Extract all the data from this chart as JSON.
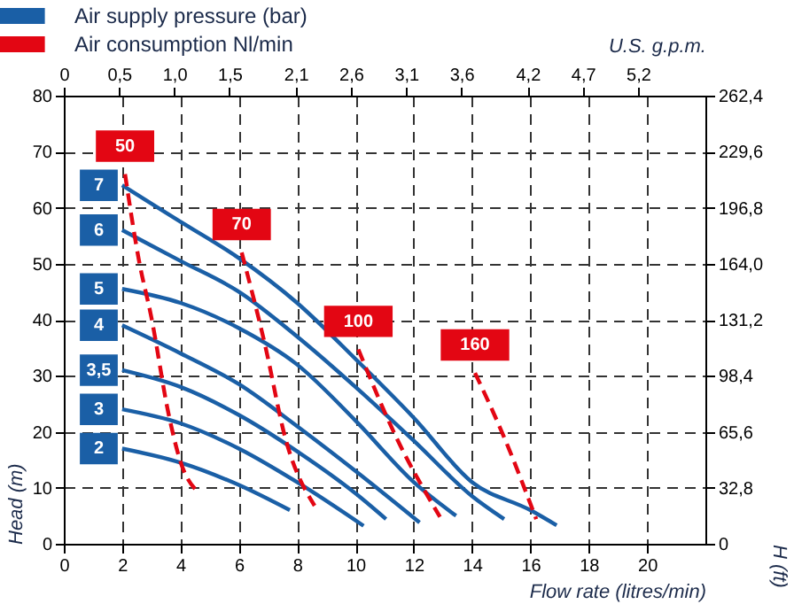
{
  "chart_data": {
    "type": "line",
    "xlabel": "Flow rate (litres/min)",
    "ylabel": "Head (m)",
    "y2label": "H (ft)",
    "x2label": "U.S. g.p.m.",
    "annotations": [
      "Air supply pressure (bar)",
      "Air consumption Nl/min"
    ],
    "xlim": [
      0,
      22
    ],
    "xticks": [
      0,
      2,
      4,
      6,
      8,
      10,
      12,
      14,
      16,
      18,
      20
    ],
    "ylim": [
      0,
      80
    ],
    "yticks": [
      0,
      10,
      20,
      30,
      40,
      50,
      60,
      70,
      80
    ],
    "x2lim": [
      0,
      5.81
    ],
    "x2ticks": [
      {
        "value": 0,
        "label": "0"
      },
      {
        "value": 0.5,
        "label": "0,5"
      },
      {
        "value": 1.0,
        "label": "1,0"
      },
      {
        "value": 1.5,
        "label": "1,5"
      },
      {
        "value": 2.1,
        "label": "2,1"
      },
      {
        "value": 2.6,
        "label": "2,6"
      },
      {
        "value": 3.1,
        "label": "3,1"
      },
      {
        "value": 3.6,
        "label": "3,6"
      },
      {
        "value": 4.2,
        "label": "4,2"
      },
      {
        "value": 4.7,
        "label": "4,7"
      },
      {
        "value": 5.2,
        "label": "5,2"
      }
    ],
    "y2lim": [
      0,
      262.4
    ],
    "y2ticks": [
      0,
      {
        "value": 32.8,
        "label": "32,8"
      },
      {
        "value": 65.6,
        "label": "65,6"
      },
      {
        "value": 98.4,
        "label": "98,4"
      },
      {
        "value": 131.2,
        "label": "131,2"
      },
      {
        "value": 164.0,
        "label": "164,0"
      },
      {
        "value": 196.8,
        "label": "196,8"
      },
      {
        "value": 229.6,
        "label": "229,6"
      },
      {
        "value": 262.4,
        "label": "262,4"
      }
    ],
    "grid": true,
    "legend": "top left",
    "marker": "none",
    "series": [
      {
        "name": "7",
        "color": "#1a5fa6",
        "line_style": "solid",
        "x": [
          2,
          4,
          6,
          8,
          10,
          12,
          14,
          16,
          16.9
        ],
        "values": [
          64,
          57.5,
          51,
          43,
          33,
          22.5,
          11,
          6,
          3.3
        ]
      },
      {
        "name": "6",
        "color": "#1a5fa6",
        "line_style": "solid",
        "x": [
          2,
          4,
          6,
          8,
          10,
          12,
          14,
          15.1
        ],
        "values": [
          56,
          50.5,
          45,
          37,
          28,
          18.4,
          8.5,
          4.4
        ]
      },
      {
        "name": "5",
        "color": "#1a5fa6",
        "line_style": "solid",
        "x": [
          2,
          4,
          6,
          8,
          10,
          12,
          13.45
        ],
        "values": [
          45.5,
          43,
          38.5,
          32,
          22,
          11,
          5
        ]
      },
      {
        "name": "4",
        "color": "#1a5fa6",
        "line_style": "solid",
        "x": [
          2,
          4,
          6,
          8,
          10,
          12.2
        ],
        "values": [
          39,
          34,
          28.5,
          21,
          13,
          3.8
        ]
      },
      {
        "name": "3,5",
        "color": "#1a5fa6",
        "line_style": "solid",
        "x": [
          2,
          4,
          6,
          8,
          10,
          11.05
        ],
        "values": [
          31,
          28,
          23,
          16.5,
          9,
          4.4
        ]
      },
      {
        "name": "3",
        "color": "#1a5fa6",
        "line_style": "solid",
        "x": [
          2,
          4,
          6,
          8,
          10.28
        ],
        "values": [
          24,
          21.5,
          17,
          11,
          3.2
        ]
      },
      {
        "name": "2",
        "color": "#1a5fa6",
        "line_style": "solid",
        "x": [
          2,
          4,
          6,
          7.75
        ],
        "values": [
          17,
          14.5,
          10.5,
          6
        ]
      },
      {
        "name": "50",
        "color": "#e30613",
        "line_style": "dashed",
        "x": [
          2.1,
          2.58,
          3.0,
          3.6,
          3.98,
          4.65
        ],
        "values": [
          66,
          50.5,
          40.5,
          23,
          15,
          9
        ]
      },
      {
        "name": "70",
        "color": "#e30613",
        "line_style": "dashed",
        "x": [
          6.1,
          6.9,
          7.6,
          8.6
        ],
        "values": [
          52,
          35.5,
          18.8,
          6.8
        ]
      },
      {
        "name": "100",
        "color": "#e30613",
        "line_style": "dashed",
        "x": [
          10.1,
          11.4,
          12.9
        ],
        "values": [
          34.7,
          19,
          4.8
        ]
      },
      {
        "name": "160",
        "color": "#e30613",
        "line_style": "dashed",
        "x": [
          14.1,
          15.1,
          16.2
        ],
        "values": [
          30.5,
          19,
          4.4
        ]
      }
    ]
  }
}
